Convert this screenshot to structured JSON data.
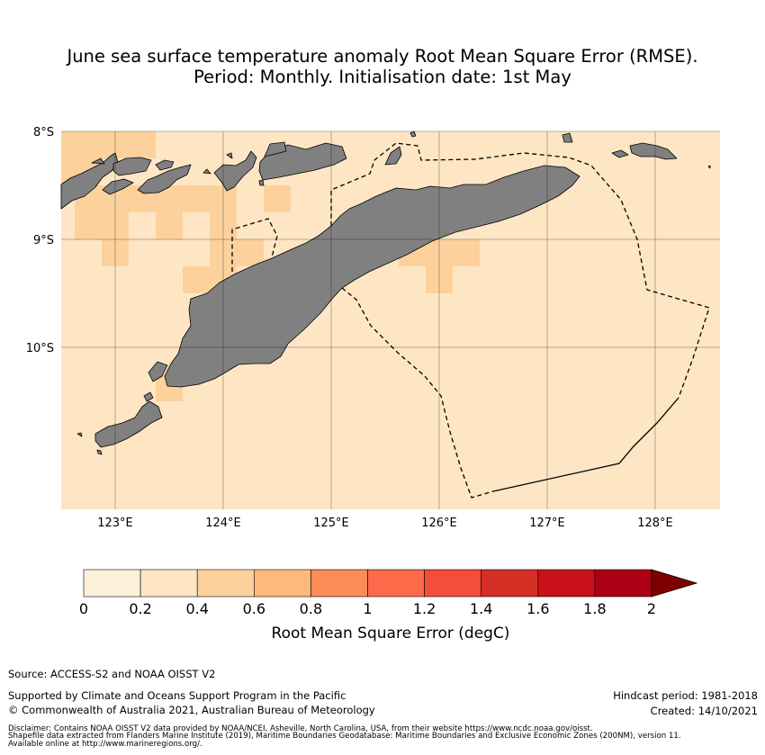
{
  "title": {
    "line1": "June sea surface temperature anomaly Root Mean Square Error (RMSE).",
    "line2": "Period: Monthly. Initialisation date: 1st May"
  },
  "map": {
    "lat_labels": [
      "8°S",
      "9°S",
      "10°S"
    ],
    "lon_labels": [
      "123°E",
      "124°E",
      "125°E",
      "126°E",
      "127°E",
      "128°E"
    ],
    "extent": {
      "lon": [
        122.5,
        128.6
      ],
      "lat": [
        -11.5,
        -8.0
      ]
    },
    "grid_resolution_deg": 0.25,
    "base_class": "0.2-0.4",
    "higher_class": "0.4-0.6",
    "land_color": "#808080",
    "eez_boundary": "dashed"
  },
  "colorbar": {
    "ticks": [
      "0",
      "0.2",
      "0.4",
      "0.6",
      "0.8",
      "1",
      "1.2",
      "1.4",
      "1.6",
      "1.8",
      "2"
    ],
    "colors": [
      "#fff0dc",
      "#fee6c4",
      "#fdd19c",
      "#fdb87c",
      "#fc8d59",
      "#fc6a4a",
      "#f44d3a",
      "#d62f26",
      "#c81119",
      "#ae0014"
    ],
    "extend_color": "#7f0000",
    "label": "Root Mean Square Error (degC)"
  },
  "footer": {
    "source": "Source: ACCESS-S2 and NOAA OISST V2",
    "supported": "Supported by Climate and Oceans Support Program in the Pacific",
    "copyright": "© Commonwealth of Australia 2021, Australian Bureau of Meteorology",
    "hindcast": "Hindcast period: 1981-2018",
    "created": "Created: 14/10/2021",
    "disclaimer1": "Disclaimer: Contains NOAA OISST V2 data provided by NOAA/NCEI, Asheville, North Carolina, USA, from their website https://www.ncdc.noaa.gov/oisst.",
    "disclaimer2": "Shapefile data extracted from Flanders Marine Institute (2019), Maritime Boundaries Geodatabase: Maritime Boundaries and Exclusive Economic Zones (200NM), version 11.",
    "disclaimer3": "Available online at http://www.marineregions.org/."
  }
}
